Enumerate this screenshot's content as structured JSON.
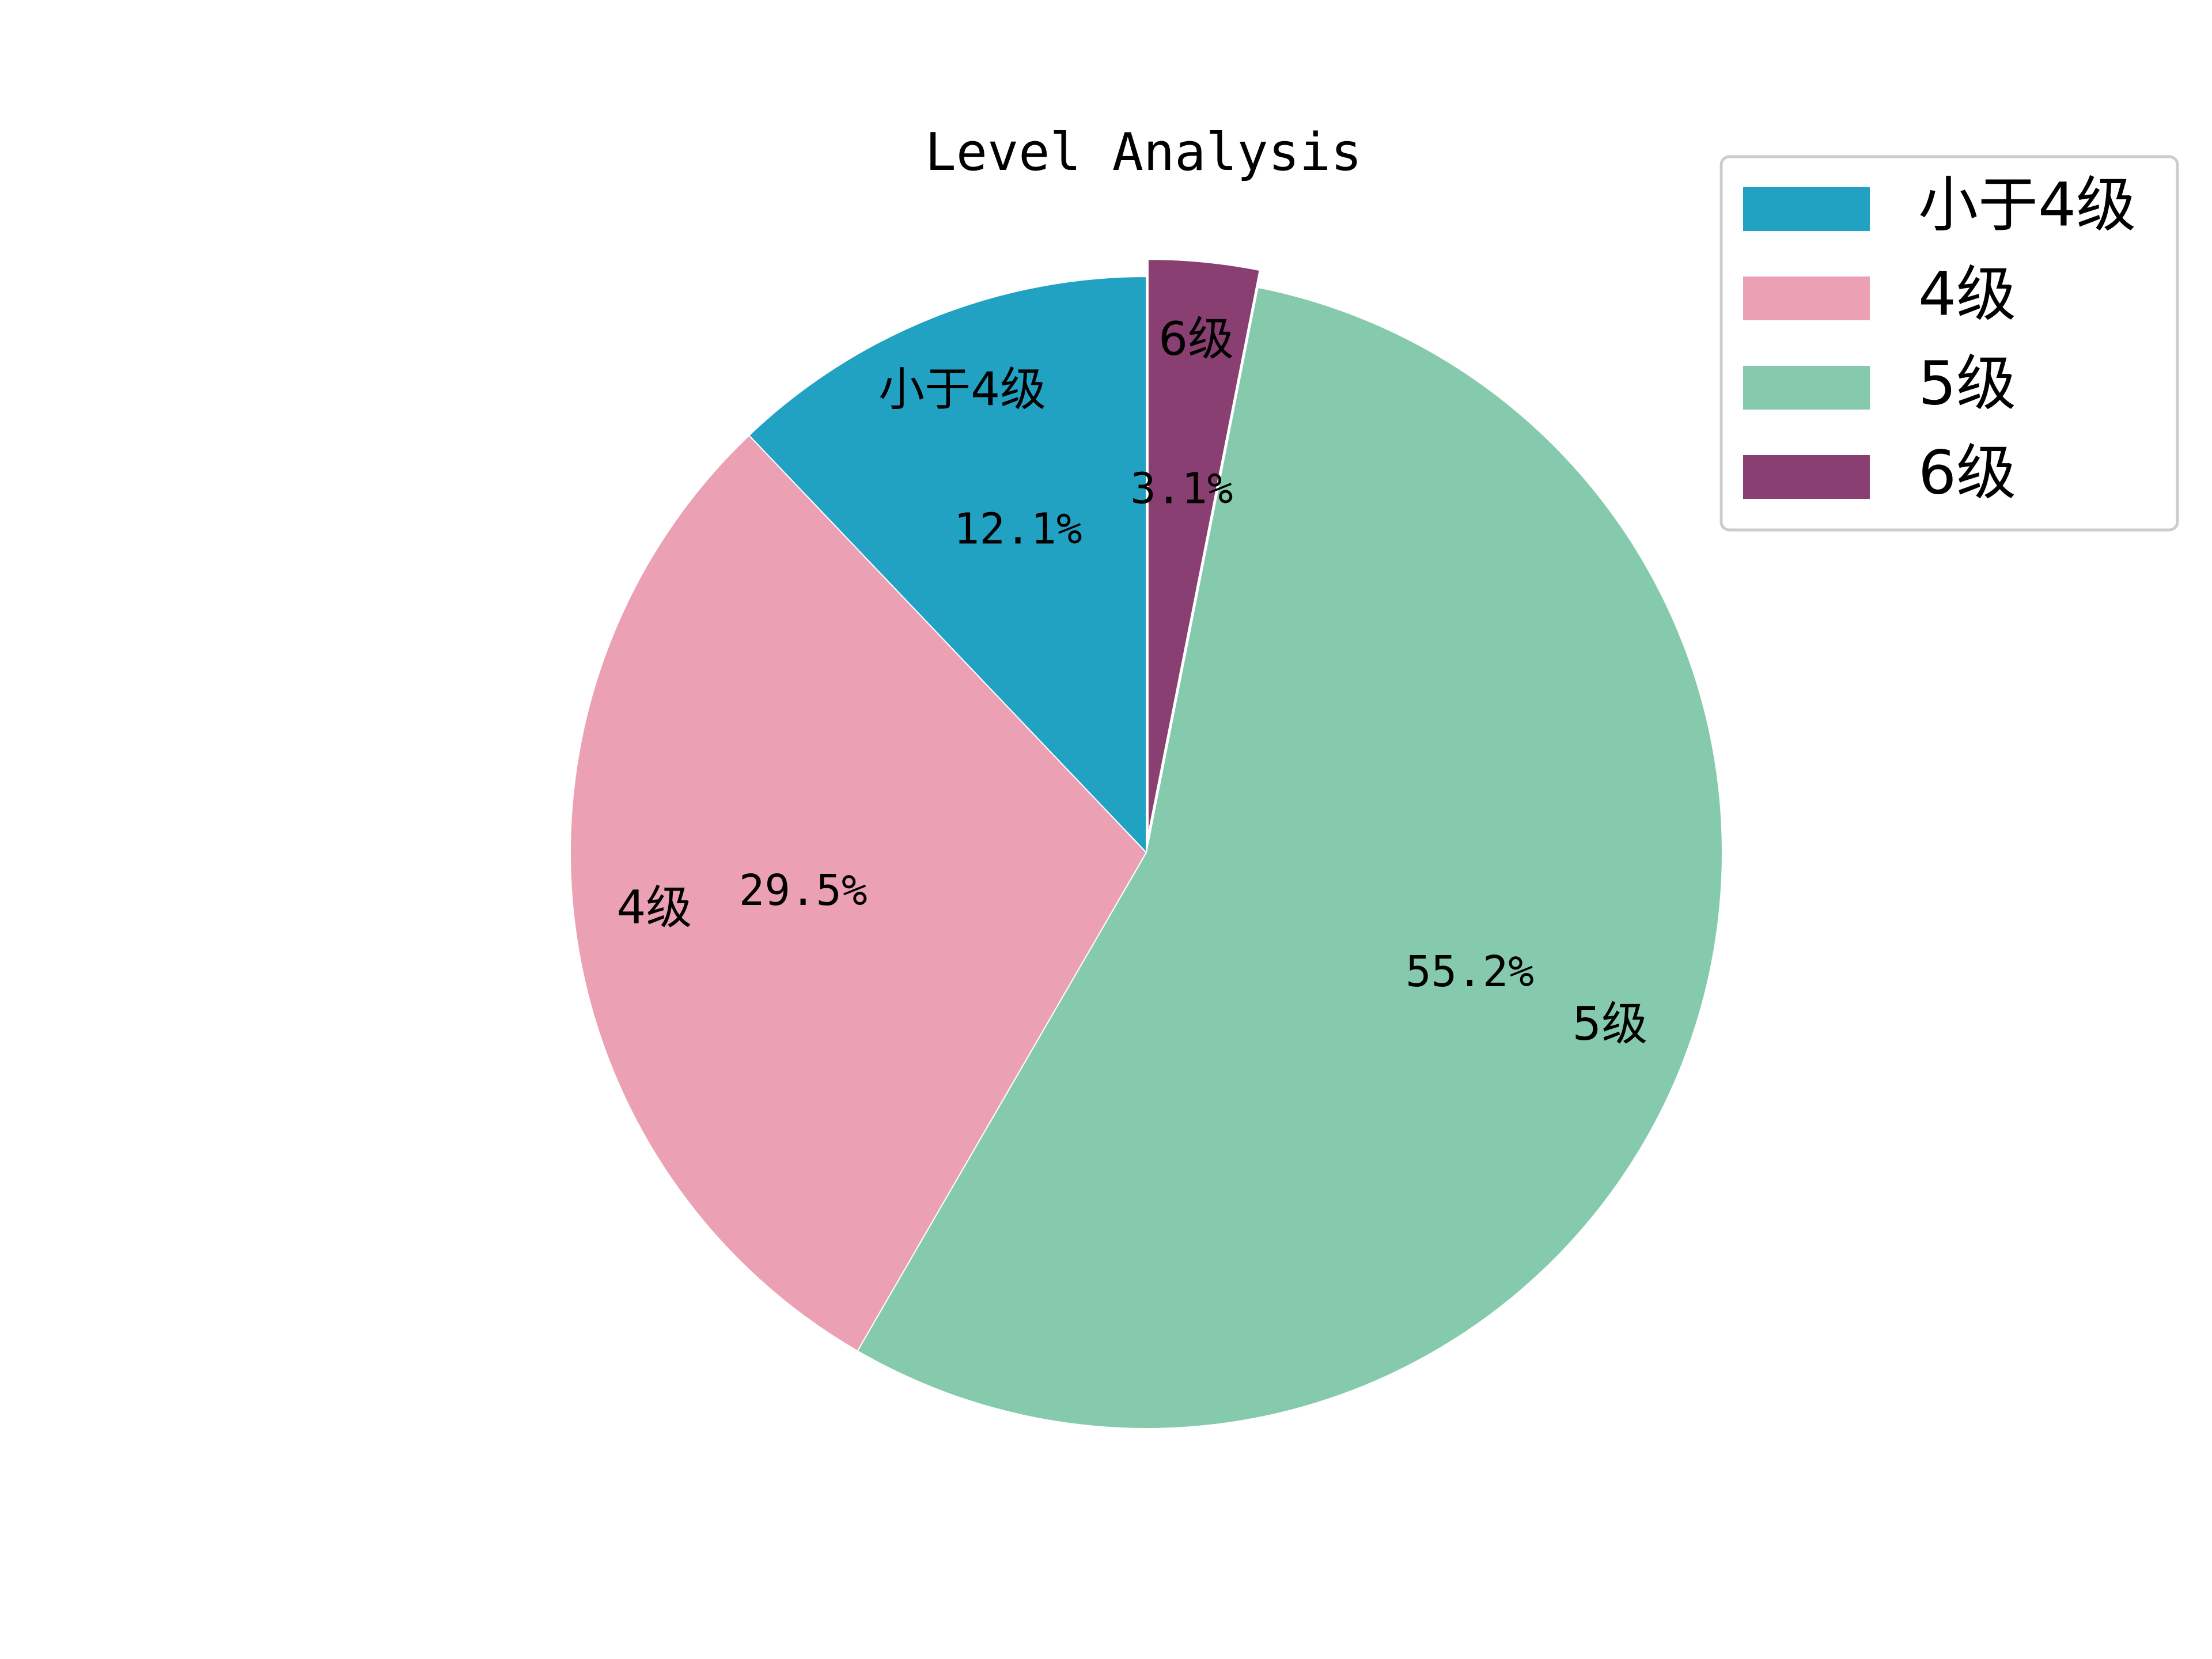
{
  "chart_data": {
    "type": "pie",
    "title": "Level Analysis",
    "categories": [
      "小于4级",
      "4级",
      "5级",
      "6级"
    ],
    "values": [
      12.1,
      29.5,
      55.2,
      3.1
    ],
    "percent_labels": [
      "12.1%",
      "29.5%",
      "55.2%",
      "3.1%"
    ],
    "colors": [
      "#22A2C3",
      "#EBA0B3",
      "#86CAAD",
      "#8A3F73"
    ],
    "exploded": [
      false,
      false,
      false,
      true
    ],
    "start_angle": "90",
    "direction": "counterclockwise",
    "legend_placement": "top-right"
  }
}
